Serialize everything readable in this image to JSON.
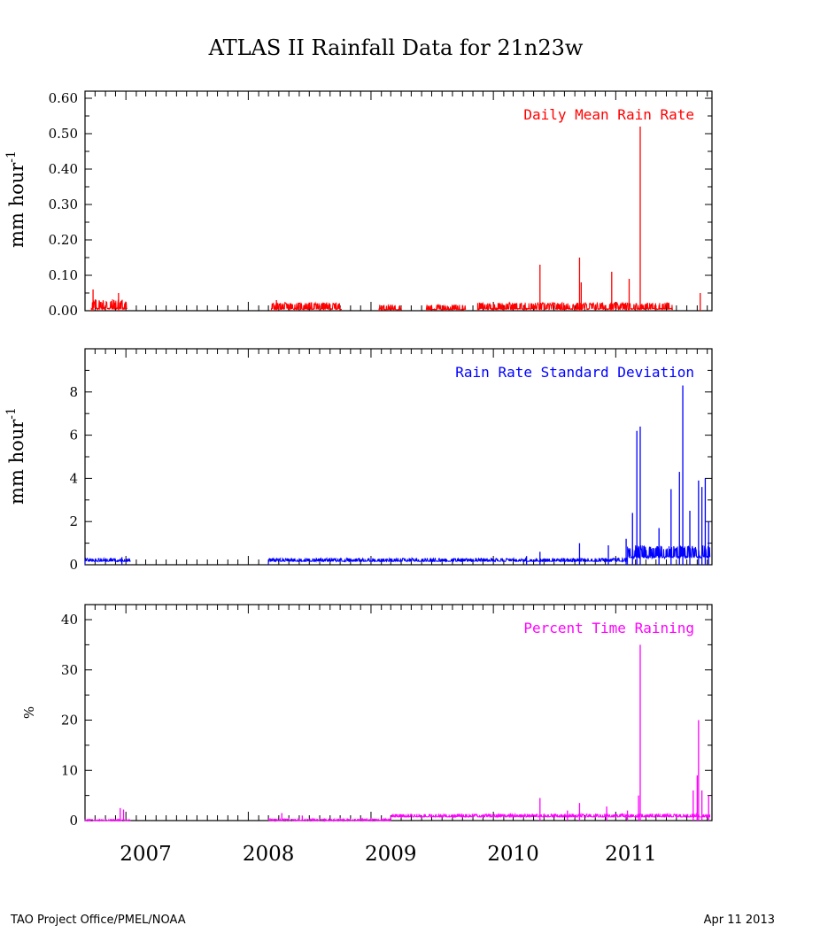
{
  "title": "ATLAS II Rainfall Data for 21n23w",
  "footer": {
    "left": "TAO Project Office/PMEL/NOAA",
    "right": "Apr 11 2013"
  },
  "x_axis": {
    "start": "2006-09-01",
    "end": "2011-10-15",
    "year_labels": [
      {
        "label": "2007",
        "date": "2007-03-01"
      },
      {
        "label": "2008",
        "date": "2008-03-01"
      },
      {
        "label": "2009",
        "date": "2009-03-01"
      },
      {
        "label": "2010",
        "date": "2010-03-01"
      },
      {
        "label": "2011",
        "date": "2011-02-15"
      }
    ]
  },
  "chart_data": [
    {
      "type": "line",
      "title": "Daily Mean Rain Rate",
      "ylabel": "mm hour",
      "ylabel_sup": "-1",
      "color": "#ff0000",
      "ylim": [
        0,
        0.62
      ],
      "yticks": [
        0.0,
        0.1,
        0.2,
        0.3,
        0.4,
        0.5,
        0.6
      ],
      "tick_labels": [
        "0.00",
        "0.10",
        "0.20",
        "0.30",
        "0.40",
        "0.50",
        "0.60"
      ],
      "segments": [
        {
          "start": "2006-09-20",
          "end": "2007-01-05",
          "base": 0.003,
          "amp": 0.03
        },
        {
          "start": "2008-03-10",
          "end": "2008-10-05",
          "base": 0.003,
          "amp": 0.02
        },
        {
          "start": "2009-01-25",
          "end": "2009-04-01",
          "base": 0.002,
          "amp": 0.015
        },
        {
          "start": "2009-06-15",
          "end": "2009-10-10",
          "base": 0.002,
          "amp": 0.015
        },
        {
          "start": "2009-11-15",
          "end": "2011-06-20",
          "base": 0.003,
          "amp": 0.02
        }
      ],
      "spikes": [
        {
          "date": "2006-09-25",
          "value": 0.06
        },
        {
          "date": "2006-12-10",
          "value": 0.05
        },
        {
          "date": "2008-03-25",
          "value": 0.03
        },
        {
          "date": "2010-05-20",
          "value": 0.13
        },
        {
          "date": "2010-09-15",
          "value": 0.15
        },
        {
          "date": "2010-09-20",
          "value": 0.08
        },
        {
          "date": "2010-12-20",
          "value": 0.11
        },
        {
          "date": "2011-02-10",
          "value": 0.09
        },
        {
          "date": "2011-03-15",
          "value": 0.52
        },
        {
          "date": "2011-09-10",
          "value": 0.05
        }
      ]
    },
    {
      "type": "line",
      "title": "Rain Rate Standard Deviation",
      "ylabel": "mm hour",
      "ylabel_sup": "-1",
      "color": "#0000ff",
      "ylim": [
        0,
        10
      ],
      "yticks": [
        0,
        2,
        4,
        6,
        8
      ],
      "tick_labels": [
        "0",
        "2",
        "4",
        "6",
        "8"
      ],
      "segments": [
        {
          "start": "2006-09-01",
          "end": "2007-01-15",
          "base": 0.15,
          "amp": 0.15
        },
        {
          "start": "2008-03-01",
          "end": "2011-02-05",
          "base": 0.15,
          "amp": 0.15
        },
        {
          "start": "2011-02-05",
          "end": "2011-10-10",
          "base": 0.3,
          "amp": 0.6
        }
      ],
      "spikes": [
        {
          "date": "2006-12-20",
          "value": 0.35
        },
        {
          "date": "2010-04-10",
          "value": 0.4
        },
        {
          "date": "2010-05-20",
          "value": 0.6
        },
        {
          "date": "2010-09-15",
          "value": 1.0
        },
        {
          "date": "2010-12-10",
          "value": 0.9
        },
        {
          "date": "2011-02-01",
          "value": 1.2
        },
        {
          "date": "2011-02-20",
          "value": 2.4
        },
        {
          "date": "2011-03-05",
          "value": 6.2
        },
        {
          "date": "2011-03-15",
          "value": 6.4
        },
        {
          "date": "2011-05-10",
          "value": 1.7
        },
        {
          "date": "2011-06-15",
          "value": 3.5
        },
        {
          "date": "2011-07-10",
          "value": 4.3
        },
        {
          "date": "2011-07-20",
          "value": 8.3
        },
        {
          "date": "2011-08-10",
          "value": 2.5
        },
        {
          "date": "2011-09-05",
          "value": 3.9
        },
        {
          "date": "2011-09-15",
          "value": 3.6
        },
        {
          "date": "2011-09-25",
          "value": 4.0
        },
        {
          "date": "2011-10-05",
          "value": 2.0
        }
      ]
    },
    {
      "type": "line",
      "title": "Percent Time Raining",
      "ylabel": "%",
      "ylabel_sup": "",
      "color": "#ff00ff",
      "ylim": [
        0,
        43
      ],
      "yticks": [
        0,
        10,
        20,
        30,
        40
      ],
      "tick_labels": [
        "0",
        "10",
        "20",
        "30",
        "40"
      ],
      "segments": [
        {
          "start": "2006-09-01",
          "end": "2007-01-15",
          "base": 0.0,
          "amp": 0.2
        },
        {
          "start": "2008-03-01",
          "end": "2009-03-01",
          "base": 0.0,
          "amp": 0.3
        },
        {
          "start": "2009-03-01",
          "end": "2011-10-10",
          "base": 0.7,
          "amp": 0.6
        }
      ],
      "spikes": [
        {
          "date": "2006-12-15",
          "value": 2.5
        },
        {
          "date": "2006-12-25",
          "value": 2.2
        },
        {
          "date": "2008-04-10",
          "value": 1.5
        },
        {
          "date": "2008-06-10",
          "value": 1.0
        },
        {
          "date": "2010-05-20",
          "value": 4.5
        },
        {
          "date": "2010-08-10",
          "value": 2.0
        },
        {
          "date": "2010-09-15",
          "value": 3.5
        },
        {
          "date": "2010-12-05",
          "value": 2.8
        },
        {
          "date": "2011-02-05",
          "value": 2.0
        },
        {
          "date": "2011-03-10",
          "value": 5.0
        },
        {
          "date": "2011-03-15",
          "value": 35.0
        },
        {
          "date": "2011-08-20",
          "value": 6.0
        },
        {
          "date": "2011-09-01",
          "value": 9.0
        },
        {
          "date": "2011-09-05",
          "value": 20.0
        },
        {
          "date": "2011-09-15",
          "value": 6.0
        },
        {
          "date": "2011-10-05",
          "value": 5.0
        }
      ]
    }
  ]
}
